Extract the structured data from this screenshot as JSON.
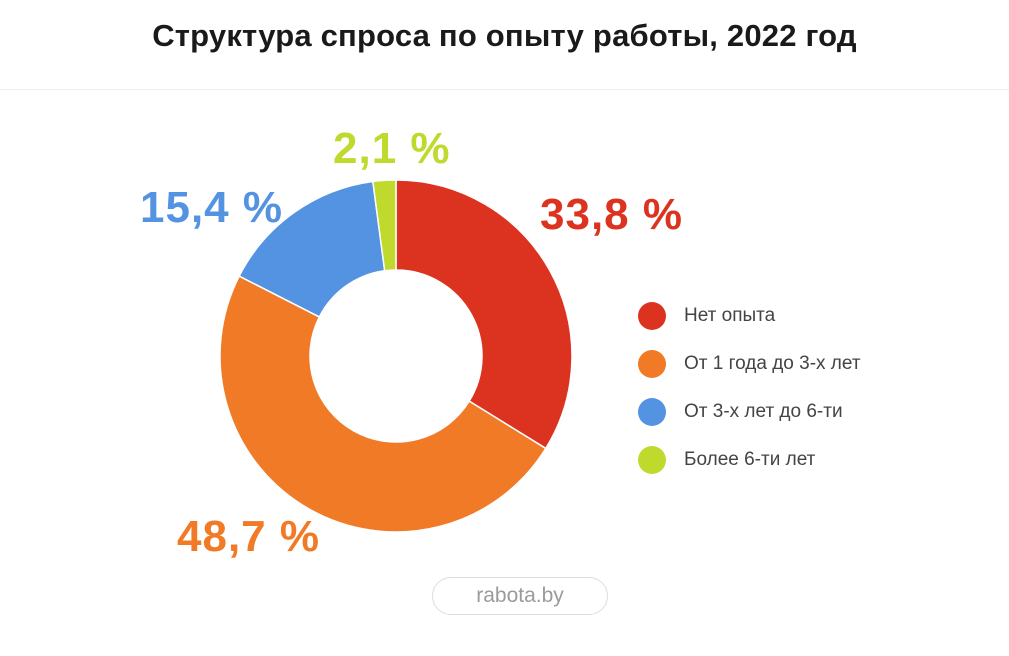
{
  "title": "Структура спроса по опыту работы, 2022 год",
  "source": "rabota.by",
  "chart_data": {
    "type": "pie",
    "donut": true,
    "title": "Структура спроса по опыту работы, 2022 год",
    "categories": [
      "Нет опыта",
      "От 1 года до 3-х лет",
      "От 3-х лет до 6-ти",
      "Более 6-ти лет"
    ],
    "values": [
      33.8,
      48.7,
      15.4,
      2.1
    ],
    "value_labels": [
      "33,8 %",
      "48,7 %",
      "15,4 %",
      "2,1 %"
    ],
    "colors": [
      "#dc3320",
      "#f07a26",
      "#5492e2",
      "#bfd92c"
    ],
    "legend_position": "right"
  }
}
